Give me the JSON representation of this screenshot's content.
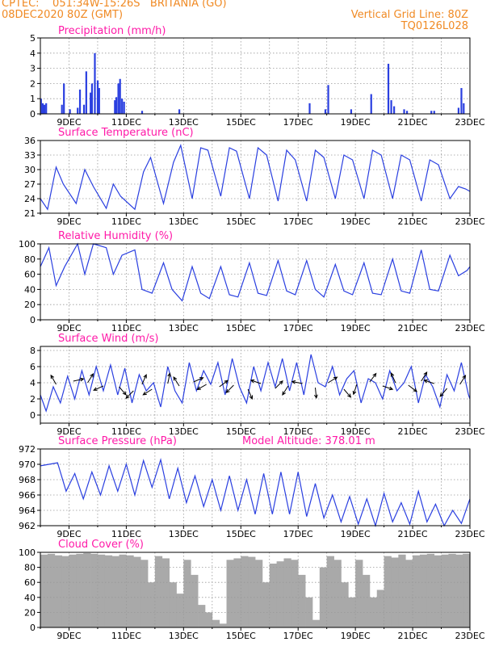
{
  "header": {
    "line1_left": "CPTEC:    051:34W-15:26S   BRITANIA (GO)",
    "line2_left": "08DEC2020 80Z (GMT)",
    "line1_right": "Vertical Grid Line: 80Z",
    "line2_right": "TQ0126L028"
  },
  "colors": {
    "header": "#f08a24",
    "title": "#ff1aa8",
    "series": "#2a3fe0",
    "wind_arrow": "#000000",
    "cloud": "#a9a9a9",
    "grid": "#999999"
  },
  "x_axis": {
    "tick_labels": [
      "9DEC",
      "11DEC",
      "13DEC",
      "15DEC",
      "17DEC",
      "19DEC",
      "21DEC",
      "23DEC"
    ],
    "range_days": [
      8.0,
      23.0
    ]
  },
  "chart_data": [
    {
      "type": "bar",
      "title": "Precipitation (mm/h)",
      "ylim": [
        0,
        5
      ],
      "y_ticks": [
        "0",
        "1",
        "2",
        "3",
        "4",
        "5"
      ],
      "x": [
        8.02,
        8.08,
        8.14,
        8.2,
        8.75,
        8.82,
        9.03,
        9.3,
        9.38,
        9.52,
        9.6,
        9.75,
        9.8,
        9.9,
        10.0,
        10.05,
        10.6,
        10.65,
        10.72,
        10.78,
        10.85,
        10.92,
        11.55,
        12.85,
        17.4,
        17.95,
        18.05,
        18.85,
        19.55,
        20.15,
        20.25,
        20.35,
        20.7,
        20.8,
        21.65,
        21.75,
        22.6,
        22.7,
        22.78
      ],
      "values": [
        1.0,
        0.7,
        0.6,
        0.7,
        0.6,
        2.0,
        0.3,
        0.4,
        1.6,
        0.6,
        2.8,
        1.4,
        2.0,
        4.0,
        2.2,
        1.7,
        0.9,
        1.1,
        2.0,
        2.3,
        1.0,
        0.8,
        0.2,
        0.3,
        0.7,
        0.3,
        1.9,
        0.3,
        1.3,
        3.3,
        0.9,
        0.5,
        0.3,
        0.2,
        0.2,
        0.2,
        0.4,
        1.7,
        0.7
      ]
    },
    {
      "type": "line",
      "title": "Surface Temperature (nC)",
      "ylim": [
        21,
        36
      ],
      "y_ticks": [
        "21",
        "24",
        "27",
        "30",
        "33",
        "36"
      ],
      "x": [
        8.0,
        8.25,
        8.55,
        8.8,
        9.25,
        9.55,
        9.85,
        10.3,
        10.55,
        10.8,
        11.3,
        11.6,
        11.85,
        12.3,
        12.65,
        12.9,
        13.3,
        13.6,
        13.85,
        14.3,
        14.6,
        14.85,
        15.3,
        15.6,
        15.9,
        16.3,
        16.6,
        16.9,
        17.3,
        17.6,
        17.9,
        18.3,
        18.6,
        18.9,
        19.3,
        19.6,
        19.9,
        20.3,
        20.6,
        20.9,
        21.3,
        21.6,
        21.9,
        22.3,
        22.6,
        22.85,
        23.0
      ],
      "values": [
        24.0,
        21.8,
        30.5,
        27.0,
        23.0,
        30.0,
        26.5,
        22.0,
        27.0,
        24.5,
        21.8,
        29.5,
        32.5,
        23.0,
        31.5,
        35.0,
        24.0,
        34.5,
        34.0,
        24.5,
        34.5,
        33.8,
        24.0,
        34.5,
        33.0,
        23.5,
        34.0,
        32.0,
        23.5,
        34.0,
        32.5,
        24.0,
        33.0,
        32.0,
        24.0,
        34.0,
        33.0,
        24.0,
        33.0,
        32.0,
        23.5,
        32.0,
        31.0,
        24.0,
        26.5,
        26.0,
        25.5
      ]
    },
    {
      "type": "line",
      "title": "Relative Humidity (%)",
      "ylim": [
        0,
        100
      ],
      "y_ticks": [
        "0",
        "20",
        "40",
        "60",
        "80",
        "100"
      ],
      "x": [
        8.0,
        8.3,
        8.55,
        8.85,
        9.3,
        9.55,
        9.85,
        10.3,
        10.55,
        10.85,
        11.3,
        11.55,
        11.9,
        12.3,
        12.6,
        12.95,
        13.3,
        13.6,
        13.9,
        14.3,
        14.6,
        14.9,
        15.3,
        15.6,
        15.9,
        16.3,
        16.6,
        16.9,
        17.3,
        17.6,
        17.9,
        18.3,
        18.6,
        18.9,
        19.3,
        19.6,
        19.9,
        20.3,
        20.6,
        20.9,
        21.3,
        21.6,
        21.9,
        22.3,
        22.6,
        22.9,
        23.0
      ],
      "values": [
        70.0,
        95.0,
        45.0,
        70.0,
        100.0,
        60.0,
        100.0,
        95.0,
        60.0,
        85.0,
        92.0,
        40.0,
        35.0,
        75.0,
        40.0,
        25.0,
        70.0,
        35.0,
        28.0,
        70.0,
        33.0,
        30.0,
        75.0,
        35.0,
        32.0,
        78.0,
        38.0,
        33.0,
        78.0,
        40.0,
        30.0,
        73.0,
        38.0,
        33.0,
        75.0,
        35.0,
        33.0,
        80.0,
        38.0,
        35.0,
        92.0,
        40.0,
        38.0,
        85.0,
        58.0,
        65.0,
        70.0
      ]
    },
    {
      "type": "line",
      "title": "Surface Wind (m/s)",
      "ylim": [
        -1,
        8.5
      ],
      "y_ticks": [
        "0",
        "2",
        "4",
        "6",
        "8"
      ],
      "x": [
        8.0,
        8.2,
        8.45,
        8.7,
        8.95,
        9.2,
        9.45,
        9.7,
        9.95,
        10.2,
        10.45,
        10.7,
        10.95,
        11.2,
        11.45,
        11.7,
        11.95,
        12.2,
        12.45,
        12.7,
        12.95,
        13.2,
        13.45,
        13.7,
        13.95,
        14.2,
        14.45,
        14.7,
        14.95,
        15.2,
        15.45,
        15.7,
        15.95,
        16.2,
        16.45,
        16.7,
        16.95,
        17.2,
        17.45,
        17.7,
        17.95,
        18.2,
        18.45,
        18.7,
        18.95,
        19.2,
        19.45,
        19.7,
        19.95,
        20.2,
        20.45,
        20.7,
        20.95,
        21.2,
        21.45,
        21.7,
        21.95,
        22.2,
        22.45,
        22.7,
        22.95,
        23.0
      ],
      "values": [
        2.5,
        0.5,
        3.5,
        1.5,
        4.8,
        2.0,
        5.5,
        2.5,
        6.0,
        3.0,
        6.2,
        2.5,
        5.8,
        1.5,
        5.0,
        3.0,
        4.0,
        1.0,
        6.0,
        3.0,
        1.5,
        6.5,
        3.0,
        5.5,
        3.8,
        6.5,
        2.5,
        7.0,
        3.5,
        1.5,
        6.0,
        3.0,
        6.5,
        3.5,
        7.0,
        3.0,
        6.5,
        2.5,
        7.5,
        4.0,
        3.5,
        6.0,
        2.5,
        4.5,
        5.5,
        1.5,
        4.5,
        4.0,
        2.0,
        5.5,
        3.0,
        4.0,
        6.0,
        1.5,
        5.0,
        3.5,
        1.0,
        5.0,
        3.0,
        6.5,
        2.5,
        2.0
      ],
      "arrows": [
        {
          "x": 8.55,
          "speed": 3.8,
          "dx": -0.4,
          "dy": 0.7
        },
        {
          "x": 9.15,
          "speed": 4.2,
          "dx": 0.9,
          "dy": 0.2
        },
        {
          "x": 9.65,
          "speed": 4.0,
          "dx": 0.5,
          "dy": 0.8
        },
        {
          "x": 10.2,
          "speed": 3.6,
          "dx": -0.9,
          "dy": -0.4
        },
        {
          "x": 10.75,
          "speed": 3.5,
          "dx": 0.6,
          "dy": -0.7
        },
        {
          "x": 11.25,
          "speed": 3.0,
          "dx": -0.7,
          "dy": -0.7
        },
        {
          "x": 11.55,
          "speed": 3.8,
          "dx": 0.4,
          "dy": 0.9
        },
        {
          "x": 11.9,
          "speed": 3.2,
          "dx": -0.8,
          "dy": -0.5
        },
        {
          "x": 12.45,
          "speed": 3.9,
          "dx": 0.2,
          "dy": 1.0
        },
        {
          "x": 12.85,
          "speed": 3.6,
          "dx": -0.5,
          "dy": 0.8
        },
        {
          "x": 13.35,
          "speed": 4.1,
          "dx": 0.9,
          "dy": 0.4
        },
        {
          "x": 13.8,
          "speed": 3.8,
          "dx": -0.7,
          "dy": -0.4
        },
        {
          "x": 14.25,
          "speed": 3.5,
          "dx": 0.8,
          "dy": 0.6
        },
        {
          "x": 14.75,
          "speed": 3.7,
          "dx": -0.6,
          "dy": -0.6
        },
        {
          "x": 15.25,
          "speed": 3.2,
          "dx": 0.4,
          "dy": -0.9
        },
        {
          "x": 15.7,
          "speed": 3.9,
          "dx": -0.9,
          "dy": 0.3
        },
        {
          "x": 16.2,
          "speed": 3.3,
          "dx": 0.7,
          "dy": 0.7
        },
        {
          "x": 16.65,
          "speed": 3.6,
          "dx": -0.5,
          "dy": -0.8
        },
        {
          "x": 17.15,
          "speed": 3.9,
          "dx": -1.0,
          "dy": 0.2
        },
        {
          "x": 17.6,
          "speed": 3.4,
          "dx": 0.1,
          "dy": -1.0
        },
        {
          "x": 18.05,
          "speed": 4.0,
          "dx": 0.8,
          "dy": 0.5
        },
        {
          "x": 18.6,
          "speed": 3.2,
          "dx": 0.6,
          "dy": -0.7
        },
        {
          "x": 19.05,
          "speed": 3.8,
          "dx": -0.3,
          "dy": -0.9
        },
        {
          "x": 19.5,
          "speed": 4.1,
          "dx": 0.6,
          "dy": 0.8
        },
        {
          "x": 19.95,
          "speed": 3.6,
          "dx": 0.9,
          "dy": -0.3
        },
        {
          "x": 20.4,
          "speed": 4.0,
          "dx": -0.4,
          "dy": 0.9
        },
        {
          "x": 20.85,
          "speed": 3.7,
          "dx": 0.8,
          "dy": -0.6
        },
        {
          "x": 21.3,
          "speed": 4.2,
          "dx": 0.5,
          "dy": 0.8
        },
        {
          "x": 21.75,
          "speed": 3.9,
          "dx": -0.9,
          "dy": 0.3
        },
        {
          "x": 22.2,
          "speed": 3.3,
          "dx": -0.6,
          "dy": -0.7
        },
        {
          "x": 22.65,
          "speed": 3.8,
          "dx": 0.5,
          "dy": 0.8
        }
      ]
    },
    {
      "type": "line",
      "title": "Surface Pressure (hPa)",
      "annotation": "Model Altitude: 378.01 m",
      "ylim": [
        962,
        972
      ],
      "y_ticks": [
        "962",
        "964",
        "966",
        "968",
        "970",
        "972"
      ],
      "x": [
        8.0,
        8.3,
        8.6,
        8.9,
        9.2,
        9.5,
        9.8,
        10.1,
        10.4,
        10.7,
        11.0,
        11.3,
        11.6,
        11.9,
        12.2,
        12.5,
        12.8,
        13.1,
        13.4,
        13.7,
        14.0,
        14.3,
        14.6,
        14.9,
        15.2,
        15.5,
        15.8,
        16.1,
        16.4,
        16.7,
        17.0,
        17.3,
        17.6,
        17.9,
        18.2,
        18.5,
        18.8,
        19.1,
        19.4,
        19.7,
        20.0,
        20.3,
        20.6,
        20.9,
        21.2,
        21.5,
        21.8,
        22.1,
        22.4,
        22.7,
        23.0
      ],
      "values": [
        969.8,
        970.0,
        970.2,
        966.5,
        968.8,
        965.5,
        969.0,
        966.0,
        969.8,
        966.5,
        970.0,
        966.0,
        970.5,
        967.0,
        970.6,
        965.5,
        969.5,
        965.0,
        968.5,
        964.5,
        968.0,
        964.0,
        968.5,
        964.0,
        968.0,
        963.5,
        968.8,
        963.5,
        969.0,
        963.5,
        969.0,
        963.2,
        967.5,
        963.0,
        966.0,
        962.5,
        965.8,
        962.2,
        965.5,
        962.0,
        966.2,
        962.5,
        965.0,
        962.2,
        966.5,
        962.5,
        964.8,
        962.0,
        964.0,
        962.3,
        965.5
      ]
    },
    {
      "type": "bar",
      "title": "Cloud Cover (%)",
      "ylim": [
        0,
        100
      ],
      "y_ticks": [
        "0",
        "20",
        "40",
        "60",
        "80",
        "100"
      ],
      "x": [
        8.0,
        8.25,
        8.5,
        8.75,
        9.0,
        9.25,
        9.5,
        9.75,
        10.0,
        10.25,
        10.5,
        10.75,
        11.0,
        11.25,
        11.5,
        11.75,
        12.0,
        12.25,
        12.5,
        12.75,
        13.0,
        13.25,
        13.5,
        13.75,
        14.0,
        14.25,
        14.5,
        14.75,
        15.0,
        15.25,
        15.5,
        15.75,
        16.0,
        16.25,
        16.5,
        16.75,
        17.0,
        17.25,
        17.5,
        17.75,
        18.0,
        18.25,
        18.5,
        18.75,
        19.0,
        19.25,
        19.5,
        19.75,
        20.0,
        20.25,
        20.5,
        20.75,
        21.0,
        21.25,
        21.5,
        21.75,
        22.0,
        22.25,
        22.5,
        22.75
      ],
      "values": [
        97,
        98,
        96,
        95,
        97,
        98,
        99,
        98,
        97,
        96,
        95,
        97,
        96,
        94,
        90,
        60,
        95,
        92,
        60,
        45,
        90,
        70,
        30,
        20,
        10,
        5,
        90,
        92,
        95,
        94,
        90,
        60,
        85,
        88,
        92,
        90,
        70,
        40,
        10,
        80,
        95,
        90,
        60,
        40,
        90,
        70,
        40,
        50,
        95,
        93,
        97,
        90,
        96,
        97,
        98,
        96,
        97,
        98,
        97,
        98
      ]
    }
  ]
}
